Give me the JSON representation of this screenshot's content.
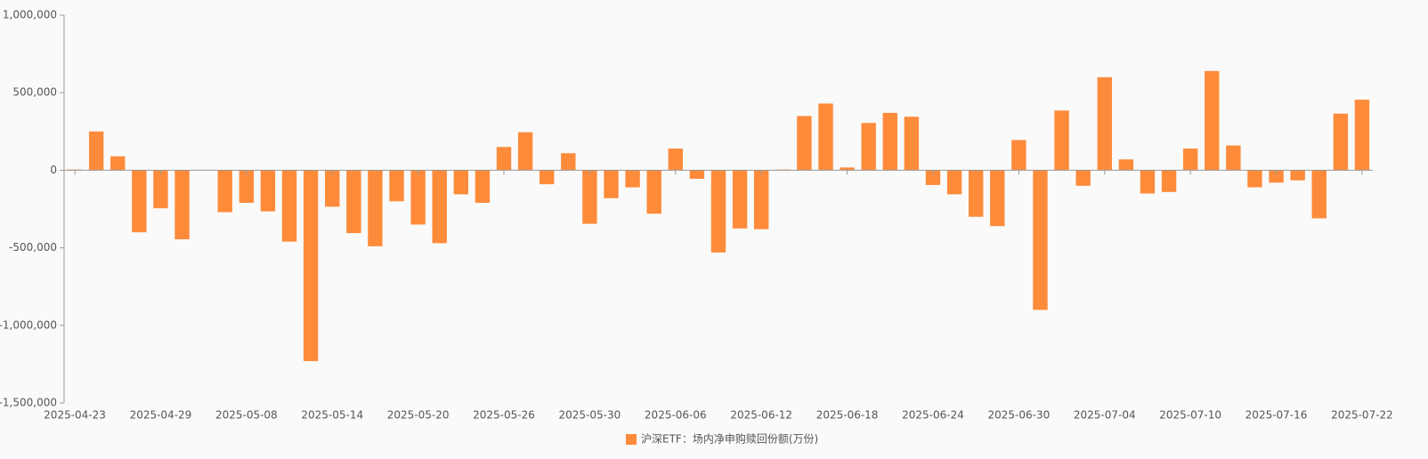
{
  "chart_data": {
    "type": "bar",
    "series": [
      {
        "name": "沪深ETF：场内净申购赎回份额(万份)",
        "color": "#fd8b3a",
        "values": [
          5000,
          250000,
          90000,
          -400000,
          -245000,
          -445000,
          null,
          -270000,
          -210000,
          -265000,
          -460000,
          -1230000,
          -235000,
          -405000,
          -490000,
          -200000,
          -350000,
          -470000,
          -155000,
          -210000,
          150000,
          245000,
          -90000,
          110000,
          -345000,
          -180000,
          -110000,
          -280000,
          140000,
          -55000,
          -530000,
          -375000,
          -380000,
          5000,
          350000,
          430000,
          18000,
          305000,
          370000,
          345000,
          -95000,
          -155000,
          -300000,
          -360000,
          195000,
          -900000,
          385000,
          -100000,
          600000,
          70000,
          -150000,
          -140000,
          140000,
          640000,
          160000,
          -110000,
          -80000,
          -65000,
          -310000,
          365000,
          455000
        ]
      }
    ],
    "categories": [
      "2025-04-23",
      null,
      null,
      null,
      "2025-04-29",
      null,
      null,
      null,
      "2025-05-08",
      null,
      null,
      null,
      "2025-05-14",
      null,
      null,
      null,
      "2025-05-20",
      null,
      null,
      null,
      "2025-05-26",
      null,
      null,
      null,
      "2025-05-30",
      null,
      null,
      null,
      "2025-06-06",
      null,
      null,
      null,
      "2025-06-12",
      null,
      null,
      null,
      "2025-06-18",
      null,
      null,
      null,
      "2025-06-24",
      null,
      null,
      null,
      "2025-06-30",
      null,
      null,
      null,
      "2025-07-04",
      null,
      null,
      null,
      "2025-07-10",
      null,
      null,
      null,
      "2025-07-16",
      null,
      null,
      null,
      "2025-07-22"
    ],
    "ylim": [
      -1500000,
      1000000
    ],
    "yticks": [
      {
        "value": -1500000,
        "label": "-1,500,000"
      },
      {
        "value": -1000000,
        "label": "-1,000,000"
      },
      {
        "value": -500000,
        "label": "-500,000"
      },
      0,
      {
        "value": 500000,
        "label": "500,000"
      },
      {
        "value": 1000000,
        "label": "1,000,000"
      }
    ],
    "grid": false,
    "legend": "bottom"
  }
}
